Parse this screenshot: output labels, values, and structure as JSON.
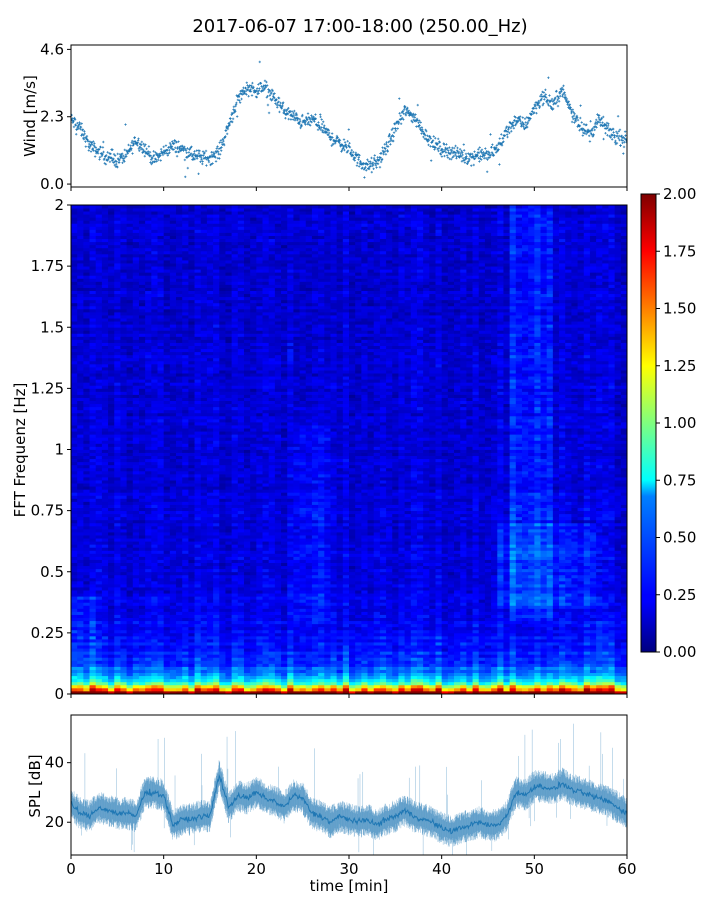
{
  "chart_data": [
    {
      "type": "scatter",
      "title": "2017-06-07 17:00-18:00 (250.00_Hz)",
      "ylabel": "Wind [m/s]",
      "xlim": [
        0,
        60
      ],
      "ylim": [
        -0.1,
        4.75
      ],
      "yticks": [
        "4.6",
        "2.3",
        "0.0"
      ],
      "color": "#1f77b4",
      "x": [
        0,
        1,
        2,
        3,
        4,
        5,
        6,
        7,
        8,
        9,
        10,
        11,
        12,
        13,
        14,
        15,
        16,
        17,
        18,
        19,
        20,
        21,
        22,
        23,
        24,
        25,
        26,
        27,
        28,
        29,
        30,
        31,
        32,
        33,
        34,
        35,
        36,
        37,
        38,
        39,
        40,
        41,
        42,
        43,
        44,
        45,
        46,
        47,
        48,
        49,
        50,
        51,
        52,
        53,
        54,
        55,
        56,
        57,
        58,
        59,
        60
      ],
      "y": [
        2.2,
        1.9,
        1.3,
        1.1,
        0.9,
        0.8,
        1.0,
        1.5,
        1.2,
        0.8,
        1.1,
        1.3,
        1.2,
        1.0,
        0.9,
        0.9,
        1.1,
        2.0,
        2.9,
        3.3,
        3.2,
        3.3,
        2.9,
        2.5,
        2.3,
        2.1,
        2.2,
        2.0,
        1.6,
        1.4,
        1.2,
        0.8,
        0.6,
        0.7,
        1.2,
        1.9,
        2.5,
        2.3,
        1.8,
        1.4,
        1.2,
        1.1,
        1.0,
        0.9,
        1.0,
        1.0,
        1.2,
        1.8,
        2.2,
        2.0,
        2.6,
        3.0,
        2.7,
        3.2,
        2.5,
        2.0,
        1.7,
        2.2,
        1.8,
        1.6,
        1.5
      ]
    },
    {
      "type": "heatmap",
      "ylabel": "FFT Frequenz [Hz]",
      "xlim": [
        0,
        60
      ],
      "ylim": [
        0,
        2
      ],
      "yticks": [
        "0",
        "0.25",
        "0.5",
        "0.75",
        "1",
        "1.25",
        "1.5",
        "1.75",
        "2"
      ],
      "colormap": "jet",
      "colorbar": {
        "vmin": 0,
        "vmax": 2,
        "ticks": [
          "0.00",
          "0.25",
          "0.50",
          "0.75",
          "1.00",
          "1.25",
          "1.50",
          "1.75",
          "2.00"
        ]
      }
    },
    {
      "type": "line",
      "ylabel": "SPL [dB]",
      "xlabel": "time [min]",
      "xlim": [
        0,
        60
      ],
      "ylim": [
        9,
        56
      ],
      "yticks": [
        "20",
        "40"
      ],
      "xticks": [
        "0",
        "10",
        "20",
        "30",
        "40",
        "50",
        "60"
      ],
      "color": "#1f77b4",
      "x": [
        0,
        1,
        2,
        3,
        4,
        5,
        6,
        7,
        8,
        9,
        10,
        11,
        12,
        13,
        14,
        15,
        16,
        17,
        18,
        19,
        20,
        21,
        22,
        23,
        24,
        25,
        26,
        27,
        28,
        29,
        30,
        31,
        32,
        33,
        34,
        35,
        36,
        37,
        38,
        39,
        40,
        41,
        42,
        43,
        44,
        45,
        46,
        47,
        48,
        49,
        50,
        51,
        52,
        53,
        54,
        55,
        56,
        57,
        58,
        59,
        60
      ],
      "y": [
        26,
        23,
        22,
        25,
        24,
        23,
        23,
        22,
        30,
        30,
        29,
        19,
        21,
        21,
        22,
        22,
        36,
        25,
        29,
        28,
        30,
        28,
        27,
        25,
        29,
        28,
        23,
        22,
        20,
        22,
        21,
        20,
        21,
        19,
        21,
        22,
        24,
        22,
        21,
        20,
        18,
        17,
        18,
        19,
        20,
        19,
        19,
        22,
        30,
        29,
        32,
        32,
        31,
        33,
        31,
        30,
        29,
        28,
        27,
        25,
        23
      ]
    }
  ]
}
